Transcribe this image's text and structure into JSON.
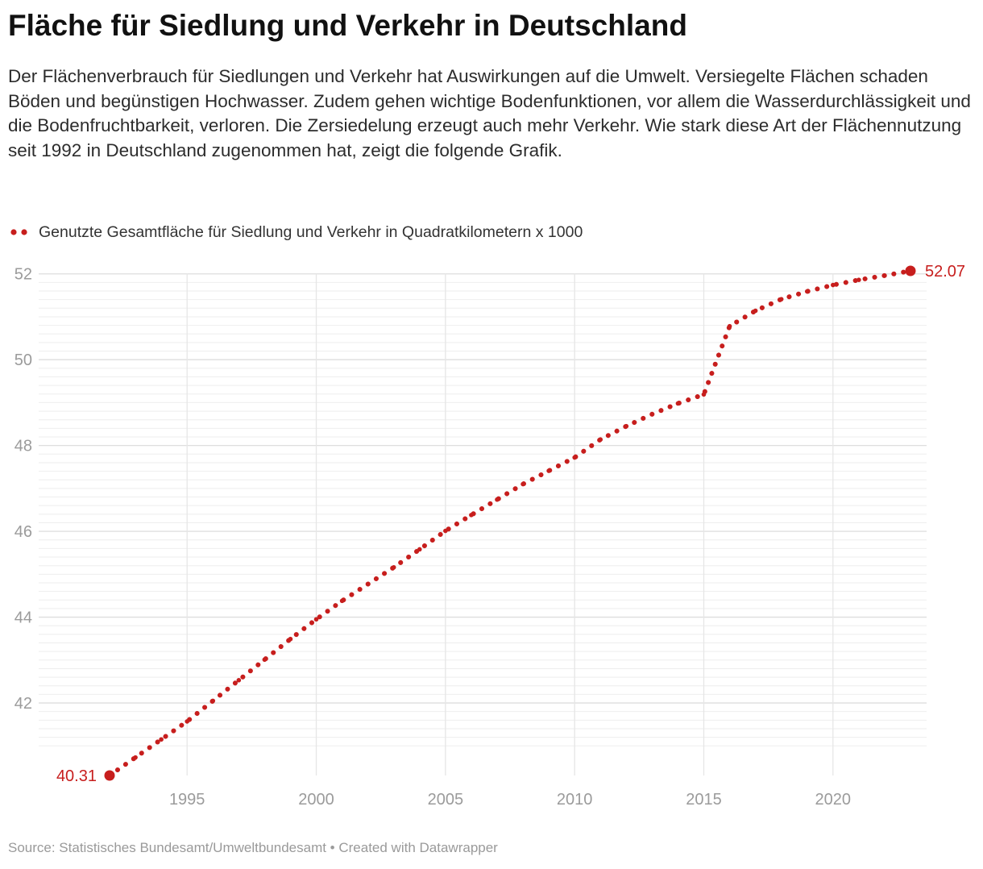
{
  "header": {
    "title": "Fläche für Siedlung und Verkehr in Deutschland",
    "description": "Der Flächenverbrauch für Siedlungen und Verkehr hat Auswirkungen auf die Umwelt. Versiegelte Flächen schaden Böden und begünstigen Hochwasser. Zudem gehen wichtige Bodenfunktionen, vor allem die Wasserdurchlässigkeit und die Bodenfruchtbarkeit, verloren. Die Zersiedelung erzeugt auch mehr Verkehr. Wie stark diese Art der Flächennutzung seit 1992 in Deutschland zugenommen hat, zeigt die folgende Grafik."
  },
  "legend": {
    "label": "Genutzte Gesamtfläche für Siedlung und Verkehr in Quadratkilometern x 1000"
  },
  "footer": {
    "source": "Source: Statistisches Bundesamt/Umweltbundesamt • Created with Datawrapper"
  },
  "colors": {
    "series": "#c71e1d",
    "gridline": "#e6e6e6",
    "minor_gridline": "#eeeeee",
    "tick_text": "#9b9b9b"
  },
  "chart_data": {
    "type": "line",
    "title": "Fläche für Siedlung und Verkehr in Deutschland",
    "xlabel": "",
    "ylabel": "",
    "xlim": [
      1992,
      2023
    ],
    "ylim": [
      40.31,
      52.07
    ],
    "x_ticks": [
      1995,
      2000,
      2005,
      2010,
      2015,
      2020
    ],
    "y_ticks": [
      42,
      44,
      46,
      48,
      50,
      52
    ],
    "grid": true,
    "line_style": "dotted",
    "series": [
      {
        "name": "Genutzte Gesamtfläche für Siedlung und Verkehr in Quadratkilometern x 1000",
        "x": [
          1992,
          1993,
          1994,
          1995,
          1996,
          1997,
          1998,
          1999,
          2000,
          2001,
          2002,
          2003,
          2004,
          2005,
          2006,
          2007,
          2008,
          2009,
          2010,
          2011,
          2012,
          2013,
          2014,
          2015,
          2016,
          2017,
          2018,
          2019,
          2020,
          2021,
          2022,
          2023
        ],
        "values": [
          40.31,
          40.73,
          41.15,
          41.57,
          42.05,
          42.53,
          43.01,
          43.49,
          43.95,
          44.38,
          44.77,
          45.16,
          45.58,
          46.01,
          46.38,
          46.74,
          47.1,
          47.41,
          47.72,
          48.14,
          48.45,
          48.73,
          48.98,
          49.19,
          50.78,
          51.14,
          51.41,
          51.59,
          51.74,
          51.86,
          51.96,
          52.07
        ],
        "labels": [
          {
            "x": 1992,
            "value": 40.31,
            "text": "40.31"
          },
          {
            "x": 2023,
            "value": 52.07,
            "text": "52.07"
          }
        ]
      }
    ]
  }
}
